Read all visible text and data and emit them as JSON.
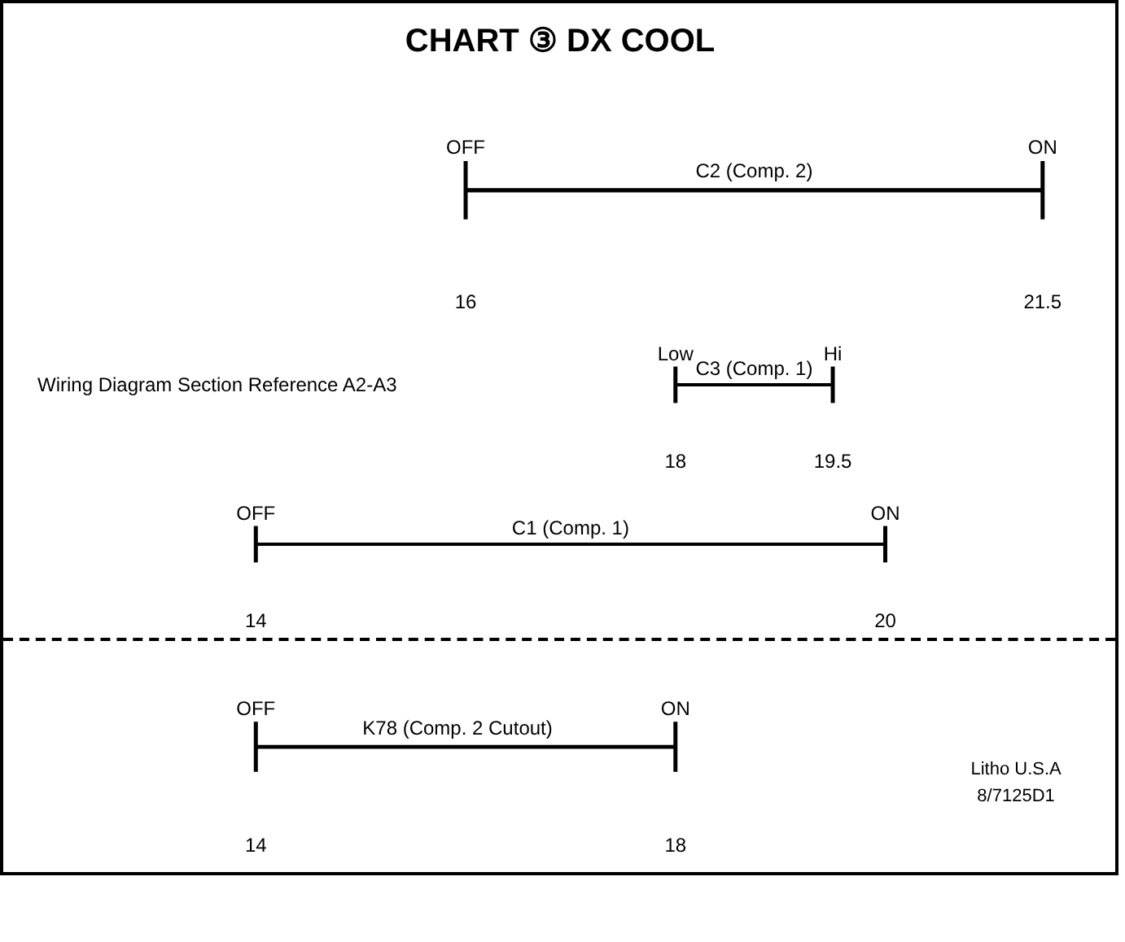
{
  "chart_data": [
    {
      "type": "bar",
      "orientation": "horizontal",
      "title": "CHART ③ DX COOL",
      "categories": [
        "C2 (Comp. 2)"
      ],
      "base": [
        16
      ],
      "values": [
        5.5
      ],
      "color": "#000000",
      "xlim": [
        11.6,
        22.2
      ],
      "xticks": [
        16,
        21.5
      ],
      "tick_labels": "x",
      "grid": false,
      "annotations": [
        "OFF",
        "ON"
      ]
    },
    {
      "type": "bar",
      "orientation": "horizontal",
      "categories": [
        "C3 (Comp. 1)"
      ],
      "base": [
        18
      ],
      "values": [
        1.5
      ],
      "color": "#000000",
      "xlim": [
        11.6,
        22.2
      ],
      "xticks": [
        18,
        19.5
      ],
      "tick_labels": "x",
      "grid": false,
      "annotations": [
        "Low",
        "Hi",
        "Wiring Diagram Section Reference A2-A3"
      ]
    },
    {
      "type": "bar",
      "orientation": "horizontal",
      "categories": [
        "C1 (Comp. 1)"
      ],
      "base": [
        14
      ],
      "values": [
        6
      ],
      "color": "#000000",
      "xlim": [
        11.6,
        22.2
      ],
      "xticks": [
        14,
        20
      ],
      "tick_labels": "x",
      "grid": false,
      "annotations": [
        "OFF",
        "ON"
      ]
    },
    {
      "type": "bar",
      "orientation": "horizontal",
      "categories": [
        "K78    (Comp. 2 Cutout)"
      ],
      "base": [
        14
      ],
      "values": [
        4
      ],
      "color": "#000000",
      "xlim": [
        11.6,
        22.2
      ],
      "xticks": [
        14,
        18
      ],
      "tick_labels": "x",
      "grid": false,
      "annotations": [
        "OFF",
        "ON",
        "Litho U.S.A",
        "8/7125D1"
      ]
    }
  ]
}
